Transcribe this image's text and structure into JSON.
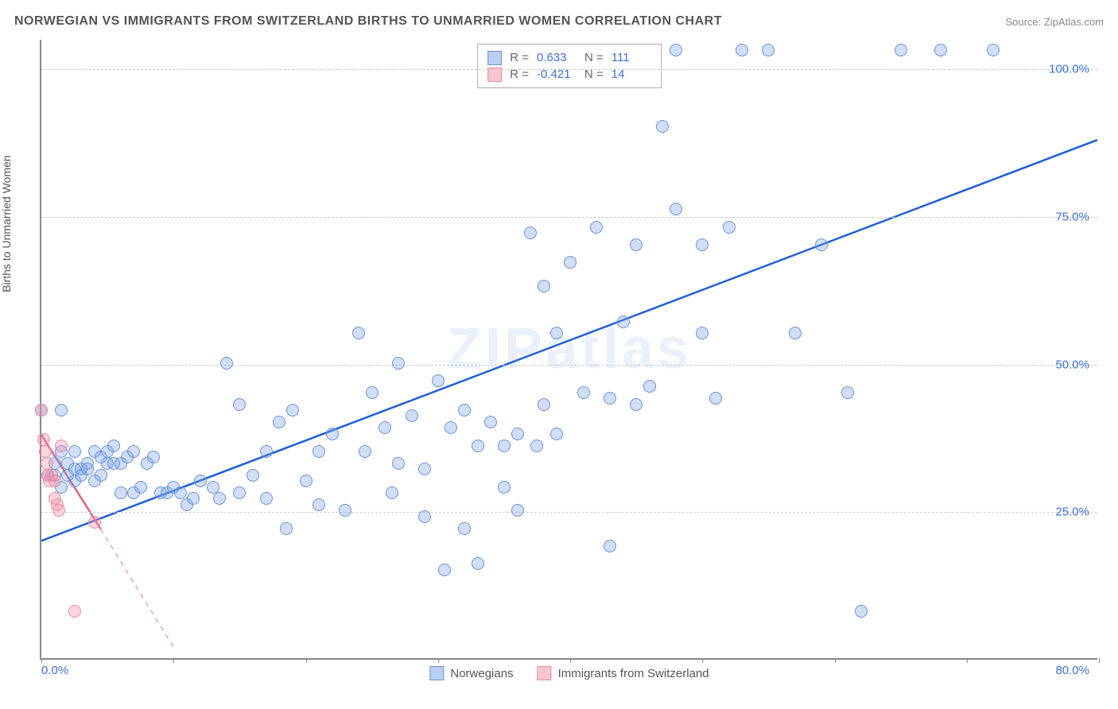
{
  "title": "NORWEGIAN VS IMMIGRANTS FROM SWITZERLAND BIRTHS TO UNMARRIED WOMEN CORRELATION CHART",
  "source": "Source: ZipAtlas.com",
  "ylabel": "Births to Unmarried Women",
  "watermark": "ZIPatlas",
  "chart": {
    "type": "scatter",
    "xlim": [
      0,
      80
    ],
    "ylim": [
      0,
      105
    ],
    "xticks": [
      0,
      10,
      20,
      30,
      40,
      50,
      60,
      70,
      80
    ],
    "xtick_labels": {
      "0": "0.0%",
      "80": "80.0%"
    },
    "yticks": [
      25,
      50,
      75,
      100
    ],
    "ytick_labels": {
      "25": "25.0%",
      "50": "50.0%",
      "75": "75.0%",
      "100": "100.0%"
    },
    "background_color": "#ffffff",
    "grid_color": "#cccccc",
    "axis_color": "#888888",
    "tick_label_color": "#3b6fd8",
    "series": [
      {
        "name": "Norwegians",
        "fill_color": "rgba(120,160,230,0.35)",
        "stroke_color": "#6a93d8",
        "marker_radius": 8,
        "R": "0.633",
        "N": "111",
        "trend": {
          "x1": 0,
          "y1": 20,
          "x2": 80,
          "y2": 88,
          "color": "#1f5fd6",
          "width": 2.5,
          "dash": "none"
        },
        "points": [
          [
            0,
            42
          ],
          [
            0.5,
            31
          ],
          [
            1,
            31
          ],
          [
            1,
            33
          ],
          [
            1.5,
            29
          ],
          [
            1.5,
            35
          ],
          [
            1.5,
            42
          ],
          [
            2,
            31
          ],
          [
            2,
            33
          ],
          [
            2.5,
            30
          ],
          [
            2.5,
            32
          ],
          [
            2.5,
            35
          ],
          [
            3,
            31
          ],
          [
            3,
            32
          ],
          [
            3.5,
            33
          ],
          [
            3.5,
            32
          ],
          [
            4,
            35
          ],
          [
            4,
            30
          ],
          [
            4.5,
            34
          ],
          [
            4.5,
            31
          ],
          [
            5,
            33
          ],
          [
            5,
            35
          ],
          [
            5.5,
            33
          ],
          [
            5.5,
            36
          ],
          [
            6,
            33
          ],
          [
            6,
            28
          ],
          [
            6.5,
            34
          ],
          [
            7,
            28
          ],
          [
            7,
            35
          ],
          [
            7.5,
            29
          ],
          [
            8,
            33
          ],
          [
            8.5,
            34
          ],
          [
            9,
            28
          ],
          [
            9.5,
            28
          ],
          [
            10,
            29
          ],
          [
            10.5,
            28
          ],
          [
            11,
            26
          ],
          [
            11.5,
            27
          ],
          [
            12,
            30
          ],
          [
            13,
            29
          ],
          [
            13.5,
            27
          ],
          [
            14,
            50
          ],
          [
            15,
            43
          ],
          [
            15,
            28
          ],
          [
            16,
            31
          ],
          [
            17,
            35
          ],
          [
            17,
            27
          ],
          [
            18,
            40
          ],
          [
            18.5,
            22
          ],
          [
            19,
            42
          ],
          [
            20,
            30
          ],
          [
            21,
            35
          ],
          [
            21,
            26
          ],
          [
            22,
            38
          ],
          [
            23,
            25
          ],
          [
            24,
            55
          ],
          [
            24.5,
            35
          ],
          [
            25,
            45
          ],
          [
            26,
            39
          ],
          [
            26.5,
            28
          ],
          [
            27,
            33
          ],
          [
            27,
            50
          ],
          [
            28,
            41
          ],
          [
            29,
            32
          ],
          [
            29,
            24
          ],
          [
            30,
            47
          ],
          [
            30.5,
            15
          ],
          [
            31,
            39
          ],
          [
            32,
            22
          ],
          [
            32,
            42
          ],
          [
            33,
            36
          ],
          [
            33,
            16
          ],
          [
            34,
            40
          ],
          [
            35,
            36
          ],
          [
            35,
            29
          ],
          [
            36,
            25
          ],
          [
            36,
            38
          ],
          [
            37,
            72
          ],
          [
            37.5,
            36
          ],
          [
            38,
            63
          ],
          [
            38,
            43
          ],
          [
            39,
            55
          ],
          [
            39,
            38
          ],
          [
            40,
            67
          ],
          [
            41,
            45
          ],
          [
            42,
            73
          ],
          [
            43,
            19
          ],
          [
            43,
            44
          ],
          [
            44,
            57
          ],
          [
            45,
            43
          ],
          [
            45,
            70
          ],
          [
            46,
            46
          ],
          [
            47,
            90
          ],
          [
            48,
            76
          ],
          [
            48,
            103
          ],
          [
            50,
            70
          ],
          [
            50,
            55
          ],
          [
            51,
            44
          ],
          [
            52,
            73
          ],
          [
            53,
            103
          ],
          [
            55,
            103
          ],
          [
            57,
            55
          ],
          [
            59,
            70
          ],
          [
            61,
            45
          ],
          [
            62,
            8
          ],
          [
            65,
            103
          ],
          [
            68,
            103
          ],
          [
            72,
            103
          ]
        ]
      },
      {
        "name": "Immigrants from Switzerland",
        "fill_color": "rgba(240,140,160,0.35)",
        "stroke_color": "#e98aa2",
        "marker_radius": 8,
        "R": "-0.421",
        "N": "14",
        "trend_solid": {
          "x1": 0,
          "y1": 38,
          "x2": 4.5,
          "y2": 22,
          "color": "#e06080",
          "width": 2.5
        },
        "trend_dash": {
          "x1": 4.5,
          "y1": 22,
          "x2": 10,
          "y2": 2,
          "color": "#e8a0b0",
          "width": 1.5
        },
        "points": [
          [
            0,
            42
          ],
          [
            0.2,
            37
          ],
          [
            0.3,
            35
          ],
          [
            0.4,
            33
          ],
          [
            0.5,
            31
          ],
          [
            0.6,
            30
          ],
          [
            0.8,
            31
          ],
          [
            1,
            30
          ],
          [
            1,
            27
          ],
          [
            1.2,
            26
          ],
          [
            1.3,
            25
          ],
          [
            1.5,
            36
          ],
          [
            2.5,
            8
          ],
          [
            4,
            23
          ]
        ]
      }
    ]
  },
  "stats_box": {
    "rows": [
      {
        "swatch_fill": "rgba(120,160,230,0.5)",
        "swatch_border": "#6a93d8",
        "r_label": "R =",
        "r_val": "0.633",
        "n_label": "N =",
        "n_val": "111"
      },
      {
        "swatch_fill": "rgba(240,140,160,0.5)",
        "swatch_border": "#e98aa2",
        "r_label": "R =",
        "r_val": "-0.421",
        "n_label": "N =",
        "n_val": "14"
      }
    ]
  },
  "legend": {
    "items": [
      {
        "swatch_fill": "rgba(120,160,230,0.5)",
        "swatch_border": "#6a93d8",
        "label": "Norwegians"
      },
      {
        "swatch_fill": "rgba(240,140,160,0.5)",
        "swatch_border": "#e98aa2",
        "label": "Immigrants from Switzerland"
      }
    ]
  }
}
